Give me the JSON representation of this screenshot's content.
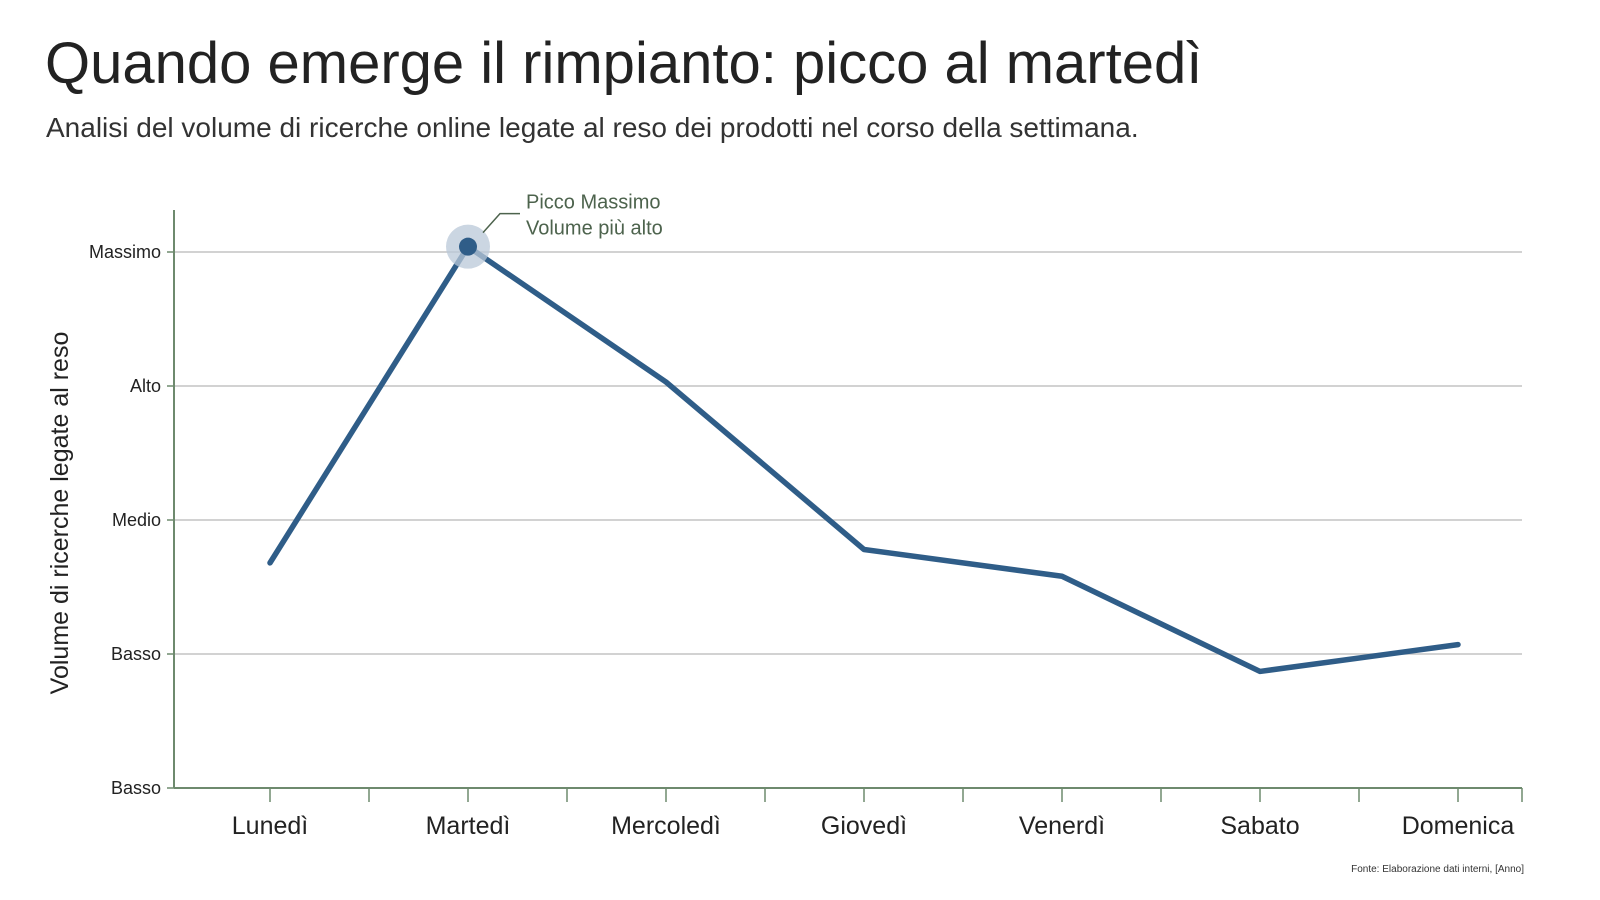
{
  "header": {
    "title": "Quando emerge il rimpianto: picco al martedì",
    "subtitle": "Analisi del volume di ricerche online legate al reso dei prodotti nel corso della settimana."
  },
  "colors": {
    "line": "#2f5d88",
    "axis": "#6e8a6e",
    "grid": "#c4c4c4",
    "highlight": "#b9c8d8",
    "annotation": "#4d634d"
  },
  "chart_data": {
    "type": "line",
    "categories": [
      "Lunedì",
      "Martedì",
      "Mercoledì",
      "Giovedì",
      "Venerdì",
      "Sabato",
      "Domenica"
    ],
    "values": [
      1.68,
      4.04,
      3.03,
      1.78,
      1.58,
      0.87,
      1.07
    ],
    "xlabel": "",
    "ylabel": "Volume di ricerche legate al reso",
    "ylim": [
      0,
      4
    ],
    "yticks": [
      {
        "value": 0,
        "label": "Basso"
      },
      {
        "value": 1,
        "label": "Basso"
      },
      {
        "value": 2,
        "label": "Medio"
      },
      {
        "value": 3,
        "label": "Alto"
      },
      {
        "value": 4,
        "label": "Massimo"
      }
    ],
    "grid": true,
    "annotation": {
      "category": "Martedì",
      "line1": "Picco Massimo",
      "line2": "Volume più alto"
    },
    "source": "Fonte: Elaborazione dati interni, [Anno]"
  }
}
